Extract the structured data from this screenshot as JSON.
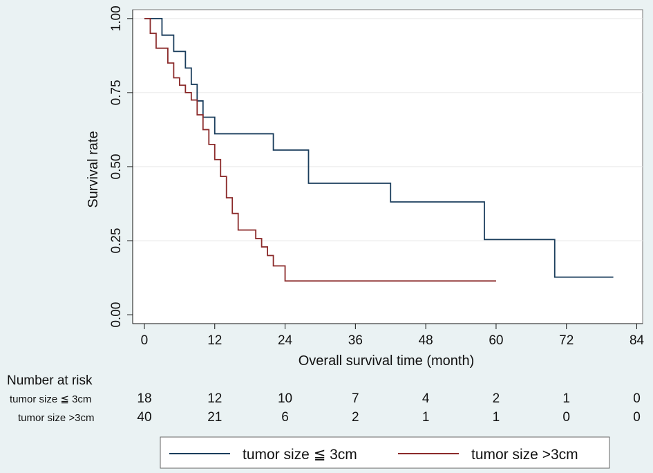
{
  "chart_data": {
    "type": "line",
    "subtype": "kaplan-meier",
    "xlabel": "Overall survival time (month)",
    "ylabel": "Survival rate",
    "xlim": [
      -2,
      85
    ],
    "ylim": [
      -0.03,
      1.03
    ],
    "x_ticks": [
      0,
      12,
      24,
      36,
      48,
      60,
      72,
      84
    ],
    "x_tick_labels": [
      "0",
      "12",
      "24",
      "36",
      "48",
      "60",
      "72",
      "84"
    ],
    "y_ticks": [
      0,
      0.25,
      0.5,
      0.75,
      1
    ],
    "y_tick_labels": [
      "0.00",
      "0.25",
      "0.50",
      "0.75",
      "1.00"
    ],
    "grid": "horizontal",
    "colors": {
      "small": "#1a3d5c",
      "large": "#8b2a2a",
      "grid": "#e6e6e6",
      "background": "#eaf2f3"
    },
    "series": [
      {
        "name": "tumor size ≦ 3cm",
        "legend_label": "tumor size ≦ 3cm",
        "color": "#1a3d5c",
        "x": [
          0,
          3,
          5,
          7,
          8,
          9,
          10,
          12,
          22,
          28,
          42,
          58,
          70,
          80
        ],
        "y": [
          1.0,
          0.944,
          0.889,
          0.833,
          0.778,
          0.722,
          0.667,
          0.611,
          0.556,
          0.444,
          0.381,
          0.254,
          0.127,
          0.127
        ]
      },
      {
        "name": "tumor size >3cm",
        "legend_label": "tumor size >3cm",
        "color": "#8b2a2a",
        "x": [
          0,
          1,
          2,
          4,
          5,
          6,
          7,
          8,
          9,
          10,
          11,
          12,
          13,
          14,
          15,
          16,
          19,
          20,
          21,
          22,
          24,
          60
        ],
        "y": [
          1.0,
          0.95,
          0.9,
          0.85,
          0.8,
          0.775,
          0.75,
          0.725,
          0.675,
          0.625,
          0.575,
          0.524,
          0.467,
          0.395,
          0.342,
          0.286,
          0.257,
          0.229,
          0.2,
          0.165,
          0.114,
          0.114
        ]
      }
    ]
  },
  "risk_table": {
    "title": "Number at risk",
    "time_points": [
      0,
      12,
      24,
      36,
      48,
      60,
      72,
      84
    ],
    "rows": [
      {
        "label": "tumor size ≦ 3cm",
        "values": [
          "18",
          "12",
          "10",
          "7",
          "4",
          "2",
          "1",
          "0"
        ]
      },
      {
        "label": "tumor size >3cm",
        "values": [
          "40",
          "21",
          "6",
          "2",
          "1",
          "1",
          "0",
          "0"
        ]
      }
    ]
  }
}
